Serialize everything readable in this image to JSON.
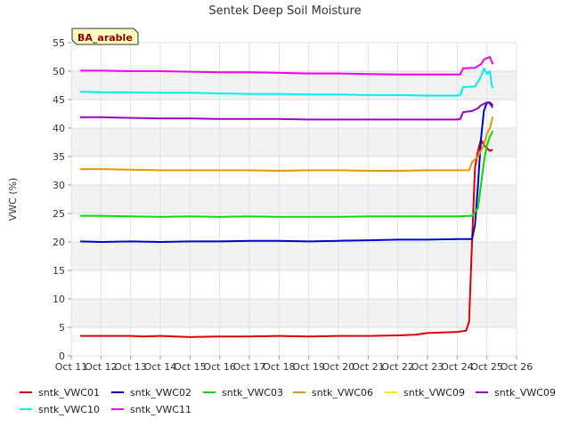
{
  "chart_data": {
    "type": "line",
    "title": "Sentek Deep Soil Moisture",
    "ylabel": "VWC (%)",
    "xlabel": "",
    "badge": "BA_arable",
    "ylim": [
      0,
      55
    ],
    "yticks": [
      0,
      5,
      10,
      15,
      20,
      25,
      30,
      35,
      40,
      45,
      50,
      55
    ],
    "xlim": [
      11,
      26
    ],
    "xticks": [
      {
        "x": 11,
        "label": "Oct 11"
      },
      {
        "x": 12,
        "label": "Oct 12"
      },
      {
        "x": 13,
        "label": "Oct 13"
      },
      {
        "x": 14,
        "label": "Oct 14"
      },
      {
        "x": 15,
        "label": "Oct 15"
      },
      {
        "x": 16,
        "label": "Oct 16"
      },
      {
        "x": 17,
        "label": "Oct 17"
      },
      {
        "x": 18,
        "label": "Oct 18"
      },
      {
        "x": 19,
        "label": "Oct 19"
      },
      {
        "x": 20,
        "label": "Oct 20"
      },
      {
        "x": 21,
        "label": "Oct 21"
      },
      {
        "x": 22,
        "label": "Oct 22"
      },
      {
        "x": 23,
        "label": "Oct 23"
      },
      {
        "x": 24,
        "label": "Oct 24"
      },
      {
        "x": 25,
        "label": "Oct 25"
      },
      {
        "x": 26,
        "label": "Oct 26"
      }
    ],
    "grid": true,
    "legend_position": "bottom",
    "series": [
      {
        "name": "sntk_VWC01",
        "color": "#dd0000",
        "points": [
          [
            11.3,
            3.5
          ],
          [
            13,
            3.5
          ],
          [
            13.4,
            3.4
          ],
          [
            14,
            3.5
          ],
          [
            15,
            3.3
          ],
          [
            16,
            3.4
          ],
          [
            17,
            3.4
          ],
          [
            18,
            3.5
          ],
          [
            19,
            3.4
          ],
          [
            20,
            3.5
          ],
          [
            21,
            3.5
          ],
          [
            22,
            3.6
          ],
          [
            22.6,
            3.7
          ],
          [
            23,
            4.0
          ],
          [
            24,
            4.2
          ],
          [
            24.3,
            4.4
          ],
          [
            24.4,
            6
          ],
          [
            24.5,
            20
          ],
          [
            24.6,
            33
          ],
          [
            24.7,
            36
          ],
          [
            24.8,
            38
          ],
          [
            24.9,
            37
          ],
          [
            25,
            36.5
          ],
          [
            25.1,
            36
          ],
          [
            25.2,
            36.2
          ]
        ]
      },
      {
        "name": "sntk_VWC02",
        "color": "#0000cc",
        "points": [
          [
            11.3,
            20.1
          ],
          [
            12,
            20.0
          ],
          [
            13,
            20.1
          ],
          [
            14,
            20.0
          ],
          [
            15,
            20.1
          ],
          [
            16,
            20.1
          ],
          [
            17,
            20.2
          ],
          [
            18,
            20.2
          ],
          [
            19,
            20.1
          ],
          [
            20,
            20.2
          ],
          [
            21,
            20.3
          ],
          [
            22,
            20.4
          ],
          [
            23,
            20.4
          ],
          [
            24,
            20.5
          ],
          [
            24.5,
            20.5
          ],
          [
            24.6,
            23
          ],
          [
            24.7,
            30
          ],
          [
            24.8,
            38
          ],
          [
            24.9,
            43
          ],
          [
            25,
            44.5
          ],
          [
            25.1,
            44.5
          ],
          [
            25.2,
            44
          ]
        ]
      },
      {
        "name": "sntk_VWC03",
        "color": "#00dd00",
        "points": [
          [
            11.3,
            24.6
          ],
          [
            12,
            24.6
          ],
          [
            13,
            24.5
          ],
          [
            14,
            24.4
          ],
          [
            15,
            24.5
          ],
          [
            16,
            24.4
          ],
          [
            17,
            24.5
          ],
          [
            18,
            24.4
          ],
          [
            19,
            24.4
          ],
          [
            20,
            24.4
          ],
          [
            21,
            24.5
          ],
          [
            22,
            24.5
          ],
          [
            23,
            24.5
          ],
          [
            24,
            24.5
          ],
          [
            24.5,
            24.6
          ],
          [
            24.7,
            26
          ],
          [
            24.8,
            30
          ],
          [
            24.9,
            34
          ],
          [
            25,
            37
          ],
          [
            25.1,
            38.5
          ],
          [
            25.2,
            39.5
          ]
        ]
      },
      {
        "name": "sntk_VWC06",
        "color": "#e69500",
        "points": [
          [
            11.3,
            32.8
          ],
          [
            12,
            32.8
          ],
          [
            13,
            32.7
          ],
          [
            14,
            32.6
          ],
          [
            15,
            32.6
          ],
          [
            16,
            32.6
          ],
          [
            17,
            32.6
          ],
          [
            18,
            32.5
          ],
          [
            19,
            32.6
          ],
          [
            20,
            32.6
          ],
          [
            21,
            32.5
          ],
          [
            22,
            32.5
          ],
          [
            23,
            32.6
          ],
          [
            24,
            32.6
          ],
          [
            24.4,
            32.6
          ],
          [
            24.5,
            34
          ],
          [
            24.7,
            35
          ],
          [
            24.8,
            36
          ],
          [
            24.9,
            37
          ],
          [
            25,
            39
          ],
          [
            25.1,
            40
          ],
          [
            25.2,
            42
          ]
        ]
      },
      {
        "name": "sntk_VWC09",
        "color": "#eeee00",
        "points": []
      },
      {
        "name": "sntk_VWC09",
        "color": "#9900cc",
        "points": [
          [
            11.3,
            41.9
          ],
          [
            12,
            41.9
          ],
          [
            13,
            41.8
          ],
          [
            14,
            41.7
          ],
          [
            15,
            41.7
          ],
          [
            16,
            41.6
          ],
          [
            17,
            41.6
          ],
          [
            18,
            41.6
          ],
          [
            19,
            41.5
          ],
          [
            20,
            41.5
          ],
          [
            21,
            41.5
          ],
          [
            22,
            41.5
          ],
          [
            23,
            41.5
          ],
          [
            24,
            41.5
          ],
          [
            24.1,
            41.6
          ],
          [
            24.2,
            42.8
          ],
          [
            24.5,
            43
          ],
          [
            24.7,
            43.5
          ],
          [
            24.8,
            44
          ],
          [
            25,
            44.5
          ],
          [
            25.1,
            44.3
          ],
          [
            25.2,
            43.6
          ]
        ]
      },
      {
        "name": "sntk_VWC10",
        "color": "#00eeee",
        "points": [
          [
            11.3,
            46.4
          ],
          [
            12,
            46.3
          ],
          [
            13,
            46.3
          ],
          [
            14,
            46.2
          ],
          [
            15,
            46.2
          ],
          [
            16,
            46.1
          ],
          [
            17,
            46.0
          ],
          [
            18,
            46.0
          ],
          [
            19,
            45.9
          ],
          [
            20,
            45.9
          ],
          [
            21,
            45.8
          ],
          [
            22,
            45.8
          ],
          [
            23,
            45.7
          ],
          [
            24,
            45.7
          ],
          [
            24.1,
            45.8
          ],
          [
            24.2,
            47.2
          ],
          [
            24.6,
            47.3
          ],
          [
            24.8,
            49
          ],
          [
            24.9,
            50.5
          ],
          [
            25,
            49.5
          ],
          [
            25.1,
            50
          ],
          [
            25.15,
            48
          ],
          [
            25.2,
            47
          ]
        ]
      },
      {
        "name": "sntk_VWC11",
        "color": "#ee00ee",
        "points": [
          [
            11.3,
            50.1
          ],
          [
            12,
            50.1
          ],
          [
            13,
            50.0
          ],
          [
            14,
            50.0
          ],
          [
            15,
            49.9
          ],
          [
            16,
            49.8
          ],
          [
            17,
            49.8
          ],
          [
            18,
            49.7
          ],
          [
            19,
            49.6
          ],
          [
            20,
            49.6
          ],
          [
            21,
            49.5
          ],
          [
            22,
            49.4
          ],
          [
            23,
            49.4
          ],
          [
            24,
            49.4
          ],
          [
            24.1,
            49.4
          ],
          [
            24.2,
            50.5
          ],
          [
            24.6,
            50.6
          ],
          [
            24.8,
            51.2
          ],
          [
            24.9,
            52
          ],
          [
            25,
            52.3
          ],
          [
            25.1,
            52.5
          ],
          [
            25.2,
            51.2
          ]
        ]
      }
    ]
  }
}
